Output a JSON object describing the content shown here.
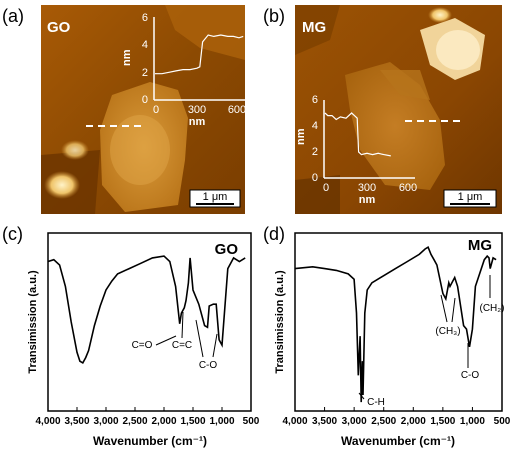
{
  "panels": {
    "a": {
      "letter": "(a)",
      "sample": "GO",
      "scalebar": "1 μm",
      "inset": {
        "ylabel": "nm",
        "xlabel": "nm",
        "yticks": [
          "2",
          "4",
          "6"
        ],
        "yzero": "0",
        "xticks": [
          "0",
          "300",
          "600"
        ]
      }
    },
    "b": {
      "letter": "(b)",
      "sample": "MG",
      "scalebar": "1 μm",
      "inset": {
        "ylabel": "nm",
        "xlabel": "nm",
        "yticks": [
          "2",
          "4",
          "6"
        ],
        "yzero": "0",
        "xticks": [
          "0",
          "300",
          "600"
        ]
      }
    },
    "c": {
      "letter": "(c)",
      "sample": "GO",
      "ylabel": "Transimission (a.u.)",
      "xlabel": "Wavenumber (cm⁻¹)",
      "xticks": [
        "4,000",
        "3,500",
        "3,000",
        "2,500",
        "2,000",
        "1,500",
        "1,000",
        "500"
      ],
      "annotations": [
        "C=O",
        "C=C",
        "C-O"
      ]
    },
    "d": {
      "letter": "(d)",
      "sample": "MG",
      "ylabel": "Transimission (a.u.)",
      "xlabel": "Wavenumber (cm⁻¹)",
      "xticks": [
        "4,000",
        "3,500",
        "3,000",
        "2,500",
        "2,000",
        "1,500",
        "1,000",
        "500"
      ],
      "annotations": [
        "(CH₃)",
        "(CH₂)",
        "C-H",
        "C-O"
      ]
    }
  },
  "chart_data": [
    {
      "type": "line",
      "title": "",
      "xlabel": "Wavenumber (cm⁻¹)",
      "ylabel": "Transimission (a.u.)",
      "xlim": [
        4000,
        500
      ],
      "x": [
        4000,
        3900,
        3800,
        3700,
        3600,
        3500,
        3450,
        3400,
        3350,
        3300,
        3200,
        3100,
        3000,
        2900,
        2800,
        2600,
        2400,
        2200,
        2000,
        1900,
        1800,
        1730,
        1700,
        1650,
        1620,
        1580,
        1550,
        1500,
        1400,
        1300,
        1250,
        1220,
        1150,
        1100,
        1050,
        1000,
        900,
        800,
        700,
        600
      ],
      "y": [
        0.84,
        0.85,
        0.82,
        0.7,
        0.5,
        0.33,
        0.28,
        0.27,
        0.3,
        0.34,
        0.48,
        0.59,
        0.68,
        0.73,
        0.77,
        0.8,
        0.83,
        0.86,
        0.87,
        0.84,
        0.7,
        0.49,
        0.55,
        0.58,
        0.62,
        0.72,
        0.86,
        0.68,
        0.6,
        0.48,
        0.47,
        0.59,
        0.6,
        0.6,
        0.4,
        0.37,
        0.8,
        0.86,
        0.84,
        0.86
      ]
    },
    {
      "type": "line",
      "title": "",
      "xlabel": "Wavenumber (cm⁻¹)",
      "ylabel": "Transimission (a.u.)",
      "xlim": [
        4000,
        500
      ],
      "x": [
        4000,
        3700,
        3500,
        3300,
        3100,
        3000,
        2960,
        2930,
        2900,
        2880,
        2860,
        2850,
        2820,
        2780,
        2700,
        2500,
        2300,
        2100,
        1900,
        1800,
        1750,
        1700,
        1650,
        1600,
        1500,
        1450,
        1400,
        1380,
        1300,
        1250,
        1150,
        1100,
        1060,
        1050,
        1000,
        950,
        800,
        750,
        720,
        700,
        650,
        600
      ],
      "y": [
        0.8,
        0.81,
        0.8,
        0.79,
        0.77,
        0.74,
        0.55,
        0.2,
        0.42,
        0.05,
        0.28,
        0.09,
        0.55,
        0.68,
        0.72,
        0.76,
        0.8,
        0.84,
        0.88,
        0.91,
        0.92,
        0.88,
        0.85,
        0.82,
        0.66,
        0.63,
        0.72,
        0.7,
        0.75,
        0.7,
        0.48,
        0.46,
        0.38,
        0.36,
        0.46,
        0.7,
        0.85,
        0.87,
        0.86,
        0.8,
        0.86,
        0.85
      ]
    },
    {
      "type": "line",
      "title": "",
      "xlabel": "nm",
      "ylabel": "nm",
      "xlim": [
        0,
        650
      ],
      "ylim": [
        0,
        6
      ],
      "x": [
        0,
        50,
        100,
        150,
        200,
        250,
        300,
        320,
        340,
        380,
        420,
        470,
        520,
        560,
        600,
        630
      ],
      "y": [
        1.9,
        1.9,
        2.0,
        2.1,
        2.2,
        2.2,
        2.3,
        2.4,
        4.2,
        4.7,
        4.6,
        4.7,
        4.6,
        4.6,
        4.5,
        4.6
      ]
    },
    {
      "type": "line",
      "title": "",
      "xlabel": "nm",
      "ylabel": "nm",
      "xlim": [
        0,
        650
      ],
      "ylim": [
        0,
        6
      ],
      "x": [
        0,
        20,
        50,
        80,
        110,
        150,
        190,
        210,
        230,
        240,
        260,
        300,
        340,
        380,
        420,
        470
      ],
      "y": [
        5.0,
        4.8,
        4.8,
        4.5,
        4.7,
        4.6,
        5.0,
        4.8,
        4.6,
        2.0,
        1.8,
        1.9,
        1.8,
        1.9,
        1.8,
        1.7
      ]
    }
  ]
}
